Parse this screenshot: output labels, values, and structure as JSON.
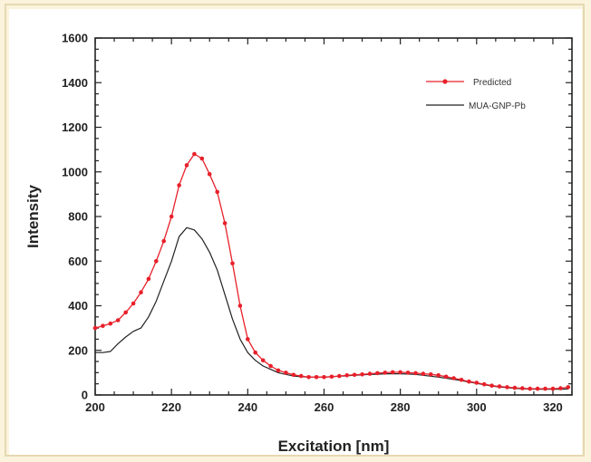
{
  "chart_data": {
    "type": "line",
    "xlabel": "Excitation [nm]",
    "ylabel": "Intensity",
    "xlim": [
      200,
      325
    ],
    "ylim": [
      0,
      1600
    ],
    "xticks": [
      200,
      220,
      240,
      260,
      280,
      300,
      320
    ],
    "yticks": [
      0,
      200,
      400,
      600,
      800,
      1000,
      1200,
      1400,
      1600
    ],
    "grid": false,
    "legend_position": "top-right",
    "series": [
      {
        "name": "Predicted",
        "color": "#e8202a",
        "marker": "circle",
        "x": [
          200,
          202,
          204,
          206,
          208,
          210,
          212,
          214,
          216,
          218,
          220,
          222,
          224,
          226,
          228,
          230,
          232,
          234,
          236,
          238,
          240,
          242,
          244,
          246,
          248,
          250,
          252,
          254,
          256,
          258,
          260,
          262,
          264,
          266,
          268,
          270,
          272,
          274,
          276,
          278,
          280,
          282,
          284,
          286,
          288,
          290,
          292,
          294,
          296,
          298,
          300,
          302,
          304,
          306,
          308,
          310,
          312,
          314,
          316,
          318,
          320,
          322,
          324
        ],
        "y": [
          300,
          310,
          320,
          335,
          370,
          410,
          460,
          520,
          600,
          690,
          800,
          940,
          1030,
          1080,
          1060,
          990,
          910,
          770,
          590,
          400,
          250,
          190,
          155,
          130,
          110,
          100,
          90,
          85,
          80,
          80,
          80,
          82,
          85,
          88,
          90,
          92,
          95,
          98,
          100,
          102,
          102,
          100,
          98,
          95,
          92,
          88,
          82,
          75,
          68,
          60,
          55,
          48,
          42,
          38,
          35,
          32,
          30,
          28,
          28,
          28,
          28,
          30,
          35
        ]
      },
      {
        "name": "MUA-GNP-Pb",
        "color": "#222222",
        "marker": "none",
        "x": [
          200,
          202,
          204,
          206,
          208,
          210,
          212,
          214,
          216,
          218,
          220,
          222,
          224,
          226,
          228,
          230,
          232,
          234,
          236,
          238,
          240,
          242,
          244,
          246,
          248,
          250,
          252,
          254,
          256,
          258,
          260,
          262,
          264,
          266,
          268,
          270,
          272,
          274,
          276,
          278,
          280,
          282,
          284,
          286,
          288,
          290,
          292,
          294,
          296,
          298,
          300,
          302,
          304,
          306,
          308,
          310,
          312,
          314,
          316,
          318,
          320,
          322,
          324
        ],
        "y": [
          190,
          190,
          195,
          230,
          260,
          285,
          300,
          350,
          420,
          510,
          600,
          710,
          750,
          740,
          700,
          640,
          560,
          450,
          340,
          250,
          190,
          155,
          130,
          115,
          100,
          92,
          85,
          82,
          80,
          80,
          80,
          82,
          84,
          86,
          88,
          90,
          92,
          93,
          95,
          95,
          95,
          94,
          92,
          88,
          84,
          80,
          75,
          70,
          64,
          58,
          52,
          46,
          40,
          36,
          33,
          30,
          28,
          27,
          26,
          26,
          26,
          26,
          27
        ]
      }
    ]
  }
}
